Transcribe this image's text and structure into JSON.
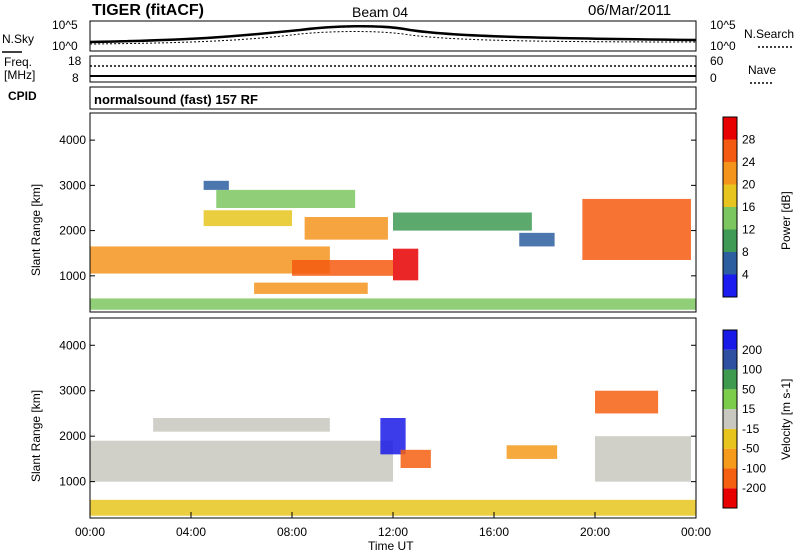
{
  "header": {
    "station": "TIGER (fitACF)",
    "beam": "Beam 04",
    "date": "06/Mar/2011"
  },
  "aux_panels": {
    "nsky_label": "N.Sky",
    "nsky_ticks": [
      "10^5",
      "10^0"
    ],
    "nsearch_label": "N.Search",
    "nsearch_ticks": [
      "10^5",
      "10^0"
    ],
    "freq_label": "Freq.",
    "freq_unit": "[MHz]",
    "freq_ticks": [
      "18",
      "8"
    ],
    "nave_label": "Nave",
    "nave_ticks": [
      "60",
      "0"
    ],
    "cpid_label": "CPID",
    "cpid_text": "normalsound (fast) 157 RF"
  },
  "chart_data": [
    {
      "type": "heatmap",
      "panel": "power",
      "ylabel": "Slant Range [km]",
      "ylim": [
        200,
        4600
      ],
      "yticks": [
        1000,
        2000,
        3000,
        4000
      ],
      "xlim": [
        0,
        24
      ],
      "colorbar_label": "Power [dB]",
      "colorbar_ticks": [
        4,
        8,
        12,
        16,
        20,
        24,
        28
      ],
      "colorbar_range": [
        0,
        32
      ],
      "colors": [
        "#1c1cf0",
        "#2d5ea0",
        "#3f9a55",
        "#7cc660",
        "#e8c41e",
        "#f5941d",
        "#f45a10",
        "#e80000"
      ],
      "regions": [
        {
          "t0": 0.0,
          "t1": 9.5,
          "r0": 1050,
          "r1": 1650,
          "level": 22
        },
        {
          "t0": 4.5,
          "t1": 8.0,
          "r0": 2100,
          "r1": 2450,
          "level": 16
        },
        {
          "t0": 5.0,
          "t1": 10.5,
          "r0": 2500,
          "r1": 2900,
          "level": 12
        },
        {
          "t0": 8.5,
          "t1": 11.8,
          "r0": 1800,
          "r1": 2300,
          "level": 22
        },
        {
          "t0": 8.0,
          "t1": 12.0,
          "r0": 1000,
          "r1": 1350,
          "level": 24
        },
        {
          "t0": 6.5,
          "t1": 11.0,
          "r0": 600,
          "r1": 850,
          "level": 22
        },
        {
          "t0": 12.0,
          "t1": 13.0,
          "r0": 900,
          "r1": 1600,
          "level": 28
        },
        {
          "t0": 12.0,
          "t1": 17.5,
          "r0": 2000,
          "r1": 2400,
          "level": 8
        },
        {
          "t0": 17.0,
          "t1": 18.4,
          "r0": 1650,
          "r1": 1950,
          "level": 4
        },
        {
          "t0": 19.5,
          "t1": 23.8,
          "r0": 1350,
          "r1": 2700,
          "level": 26
        },
        {
          "t0": 4.5,
          "t1": 5.5,
          "r0": 2900,
          "r1": 3100,
          "level": 4
        },
        {
          "t0": 0.0,
          "t1": 24.0,
          "r0": 250,
          "r1": 500,
          "level": 14
        }
      ]
    },
    {
      "type": "heatmap",
      "panel": "velocity",
      "ylabel": "Slant Range [km]",
      "ylim": [
        200,
        4600
      ],
      "yticks": [
        1000,
        2000,
        3000,
        4000
      ],
      "xlim": [
        0,
        24
      ],
      "xlabel": "Time UT",
      "xticks": [
        "00:00",
        "04:00",
        "08:00",
        "12:00",
        "16:00",
        "20:00",
        "00:00"
      ],
      "colorbar_label": "Velocity [m s-1]",
      "colorbar_ticks": [
        "200",
        "100",
        "50",
        "15",
        "-15",
        "-50",
        "-100",
        "-200"
      ],
      "colors": [
        "#1a1ae8",
        "#2f4fa0",
        "#3e9a4e",
        "#7ccd4a",
        "#c8c8c0",
        "#e8c41e",
        "#f59a1a",
        "#f46010",
        "#e80000"
      ],
      "regions": [
        {
          "t0": 0.0,
          "t1": 12.0,
          "r0": 1000,
          "r1": 1900,
          "v": 0
        },
        {
          "t0": 2.5,
          "t1": 9.5,
          "r0": 2100,
          "r1": 2400,
          "v": 0
        },
        {
          "t0": 11.5,
          "t1": 12.5,
          "r0": 1600,
          "r1": 2400,
          "v": 200
        },
        {
          "t0": 12.3,
          "t1": 13.5,
          "r0": 1300,
          "r1": 1700,
          "v": -200
        },
        {
          "t0": 20.0,
          "t1": 23.8,
          "r0": 1000,
          "r1": 2000,
          "v": 0
        },
        {
          "t0": 20.0,
          "t1": 22.5,
          "r0": 2500,
          "r1": 3000,
          "v": -200
        },
        {
          "t0": 16.5,
          "t1": 18.5,
          "r0": 1500,
          "r1": 1800,
          "v": -100
        },
        {
          "t0": 0.0,
          "t1": 24.0,
          "r0": 250,
          "r1": 600,
          "v": -50
        }
      ]
    }
  ]
}
